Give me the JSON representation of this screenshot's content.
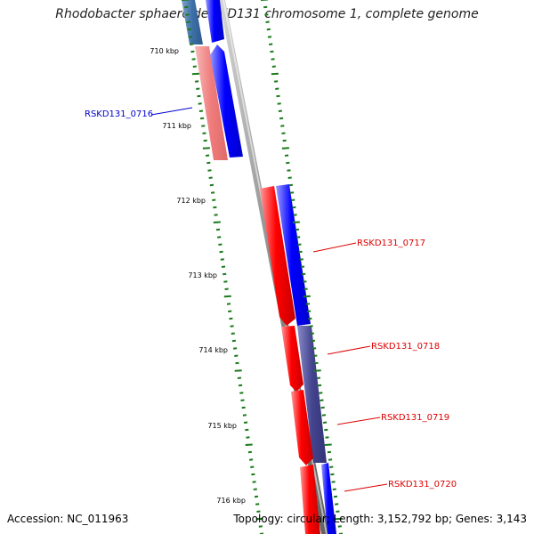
{
  "title": "Rhodobacter sphaeroides KD131 chromosome 1, complete genome",
  "accession_text": "Accession: NC_011963",
  "summary_text": "Topology: circular; Length: 3,152,792 bp; Genes: 3,143",
  "tick_labels": [
    "710 kbp",
    "711 kbp",
    "712 kbp",
    "713 kbp",
    "714 kbp",
    "715 kbp",
    "716 kbp"
  ],
  "gene_labels": [
    {
      "name": "RSKD131_0716",
      "color": "#0000cc"
    },
    {
      "name": "RSKD131_0717",
      "color": "#dd0000"
    },
    {
      "name": "RSKD131_0718",
      "color": "#dd0000"
    },
    {
      "name": "RSKD131_0719",
      "color": "#dd0000"
    },
    {
      "name": "RSKD131_0720",
      "color": "#dd0000"
    }
  ],
  "colors": {
    "forward_gene": "#ff0000",
    "forward_gene_light": "#f08080",
    "reverse_gene": "#0000ff",
    "tick_marks": "#1a7a1a",
    "backbone": "#808080"
  }
}
